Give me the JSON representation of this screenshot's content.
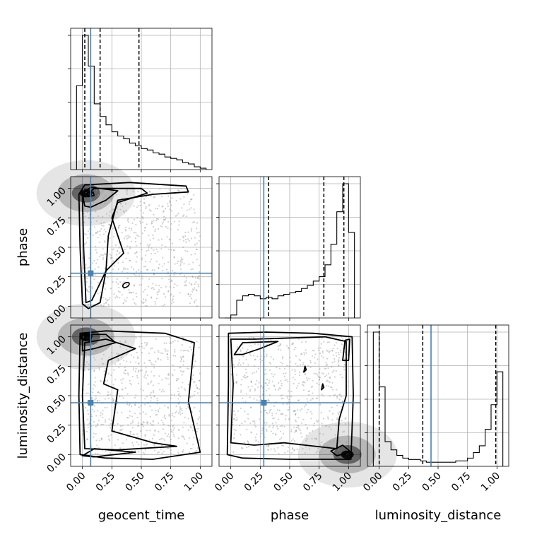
{
  "chart_data": {
    "type": "corner",
    "parameters": [
      {
        "key": "geocent_time",
        "label": "geocent_time"
      },
      {
        "key": "phase",
        "label": "phase"
      },
      {
        "key": "luminosity_distance",
        "label": "luminosity_distance"
      }
    ],
    "axis_range": [
      -0.1,
      1.1
    ],
    "tick_values": [
      0.0,
      0.25,
      0.5,
      0.75,
      1.0
    ],
    "tick_labels": [
      "0.00",
      "0.25",
      "0.50",
      "0.75",
      "1.00"
    ],
    "grid": true,
    "truth_color": "#4682b4",
    "truths": {
      "geocent_time": 0.07,
      "phase": 0.28,
      "luminosity_distance": 0.44
    },
    "quantiles": {
      "geocent_time": [
        0.02,
        0.15,
        0.48
      ],
      "phase": [
        0.32,
        0.79,
        0.96
      ],
      "luminosity_distance": [
        0.0,
        0.37,
        0.99
      ]
    },
    "histograms": {
      "geocent_time": {
        "bin_edges": [
          -0.05,
          0.0,
          0.05,
          0.1,
          0.15,
          0.2,
          0.25,
          0.3,
          0.35,
          0.4,
          0.45,
          0.5,
          0.55,
          0.6,
          0.65,
          0.7,
          0.75,
          0.8,
          0.85,
          0.9,
          0.95,
          1.0,
          1.05
        ],
        "counts": [
          0.6,
          0.96,
          0.74,
          0.47,
          0.38,
          0.32,
          0.27,
          0.24,
          0.22,
          0.19,
          0.17,
          0.15,
          0.14,
          0.12,
          0.11,
          0.09,
          0.08,
          0.07,
          0.05,
          0.04,
          0.02,
          0.01
        ]
      },
      "phase": {
        "bin_edges": [
          -0.05,
          0.0,
          0.05,
          0.1,
          0.15,
          0.2,
          0.25,
          0.3,
          0.35,
          0.4,
          0.45,
          0.5,
          0.55,
          0.6,
          0.65,
          0.7,
          0.75,
          0.8,
          0.85,
          0.9,
          0.95,
          1.0,
          1.05
        ],
        "counts": [
          0.0,
          0.02,
          0.12,
          0.15,
          0.16,
          0.15,
          0.13,
          0.14,
          0.13,
          0.15,
          0.16,
          0.17,
          0.18,
          0.2,
          0.22,
          0.25,
          0.28,
          0.36,
          0.5,
          0.72,
          0.91,
          0.58
        ]
      },
      "luminosity_distance": {
        "bin_edges": [
          -0.05,
          0.0,
          0.05,
          0.1,
          0.15,
          0.2,
          0.25,
          0.3,
          0.35,
          0.4,
          0.45,
          0.5,
          0.55,
          0.6,
          0.65,
          0.7,
          0.75,
          0.8,
          0.85,
          0.9,
          0.95,
          1.0,
          1.05
        ],
        "counts": [
          0.98,
          0.58,
          0.18,
          0.12,
          0.08,
          0.06,
          0.05,
          0.05,
          0.04,
          0.03,
          0.03,
          0.03,
          0.03,
          0.03,
          0.04,
          0.04,
          0.06,
          0.1,
          0.15,
          0.27,
          0.45,
          0.69
        ]
      }
    },
    "contour_panels": [
      {
        "x": "geocent_time",
        "y": "phase",
        "density_peak": {
          "x": 0.03,
          "y": 0.96
        },
        "isolated_contour": {
          "x": 0.37,
          "y": 0.18
        },
        "contours": [
          [
            [
              0.0,
              0.02
            ],
            [
              -0.02,
              0.5
            ],
            [
              -0.03,
              0.95
            ],
            [
              0.02,
              1.03
            ],
            [
              0.4,
              1.05
            ],
            [
              0.88,
              1.02
            ],
            [
              0.9,
              0.97
            ],
            [
              0.6,
              0.95
            ],
            [
              0.3,
              0.9
            ],
            [
              0.22,
              0.6
            ],
            [
              0.2,
              0.3
            ],
            [
              0.15,
              0.03
            ],
            [
              0.05,
              -0.02
            ]
          ],
          [
            [
              0.03,
              0.03
            ],
            [
              0.01,
              0.5
            ],
            [
              0.0,
              0.92
            ],
            [
              0.1,
              1.0
            ],
            [
              0.5,
              1.0
            ],
            [
              0.55,
              0.96
            ],
            [
              0.3,
              0.88
            ],
            [
              0.25,
              0.75
            ],
            [
              0.35,
              0.45
            ],
            [
              0.2,
              0.3
            ],
            [
              0.08,
              0.05
            ]
          ],
          [
            [
              0.02,
              0.85
            ],
            [
              0.0,
              0.95
            ],
            [
              0.07,
              1.01
            ],
            [
              0.3,
              0.98
            ],
            [
              0.2,
              0.9
            ],
            [
              0.07,
              0.84
            ]
          ],
          [
            [
              0.05,
              0.93
            ],
            [
              0.04,
              0.96
            ],
            [
              0.09,
              0.97
            ],
            [
              0.1,
              0.94
            ]
          ]
        ]
      },
      {
        "x": "geocent_time",
        "y": "luminosity_distance",
        "density_peak": {
          "x": 0.03,
          "y": 1.0
        },
        "contours": [
          [
            [
              -0.02,
              0.0
            ],
            [
              -0.03,
              0.5
            ],
            [
              -0.02,
              1.03
            ],
            [
              0.2,
              1.05
            ],
            [
              0.7,
              1.03
            ],
            [
              0.95,
              0.95
            ],
            [
              0.9,
              0.45
            ],
            [
              1.0,
              0.02
            ],
            [
              0.6,
              -0.04
            ],
            [
              0.2,
              -0.03
            ]
          ],
          [
            [
              0.02,
              0.05
            ],
            [
              0.0,
              0.5
            ],
            [
              0.02,
              0.95
            ],
            [
              0.2,
              0.98
            ],
            [
              0.45,
              0.9
            ],
            [
              0.22,
              0.8
            ],
            [
              0.18,
              0.6
            ],
            [
              0.3,
              0.55
            ],
            [
              0.25,
              0.2
            ],
            [
              0.6,
              0.1
            ],
            [
              0.8,
              0.07
            ],
            [
              0.3,
              0.04
            ]
          ],
          [
            [
              0.0,
              0.88
            ],
            [
              0.0,
              1.02
            ],
            [
              0.2,
              1.02
            ],
            [
              0.28,
              0.95
            ],
            [
              0.1,
              0.9
            ]
          ],
          [
            [
              0.02,
              0.97
            ],
            [
              0.03,
              1.01
            ],
            [
              0.08,
              1.01
            ],
            [
              0.07,
              0.97
            ]
          ],
          [
            [
              0.0,
              -0.01
            ],
            [
              0.1,
              0.05
            ],
            [
              0.45,
              0.02
            ],
            [
              0.1,
              -0.02
            ]
          ]
        ]
      },
      {
        "x": "phase",
        "y": "luminosity_distance",
        "density_peak": {
          "x": 0.99,
          "y": 0.0
        },
        "contours": [
          [
            [
              -0.03,
              0.0
            ],
            [
              -0.02,
              0.6
            ],
            [
              -0.02,
              1.03
            ],
            [
              0.3,
              1.04
            ],
            [
              0.7,
              1.03
            ],
            [
              1.03,
              1.0
            ],
            [
              1.04,
              0.5
            ],
            [
              1.02,
              -0.04
            ],
            [
              0.5,
              -0.04
            ],
            [
              0.1,
              -0.03
            ]
          ],
          [
            [
              0.0,
              0.1
            ],
            [
              0.02,
              0.6
            ],
            [
              0.0,
              0.98
            ],
            [
              0.2,
              0.98
            ],
            [
              0.8,
              1.0
            ],
            [
              0.98,
              0.96
            ],
            [
              0.98,
              0.5
            ],
            [
              0.92,
              0.3
            ],
            [
              0.9,
              0.05
            ],
            [
              0.45,
              0.1
            ],
            [
              0.2,
              0.08
            ]
          ],
          [
            [
              0.03,
              0.85
            ],
            [
              0.1,
              0.95
            ],
            [
              0.4,
              0.96
            ],
            [
              0.25,
              0.9
            ],
            [
              0.1,
              0.85
            ]
          ],
          [
            [
              0.85,
              0.03
            ],
            [
              0.95,
              0.08
            ],
            [
              1.02,
              0.02
            ],
            [
              0.9,
              -0.01
            ]
          ],
          [
            [
              0.95,
              0.8
            ],
            [
              0.97,
              0.97
            ],
            [
              1.01,
              0.98
            ],
            [
              1.0,
              0.8
            ]
          ],
          [
            [
              0.63,
              0.75
            ],
            [
              0.62,
              0.7
            ],
            [
              0.64,
              0.72
            ]
          ],
          [
            [
              0.78,
              0.6
            ],
            [
              0.77,
              0.55
            ],
            [
              0.79,
              0.57
            ]
          ]
        ]
      }
    ]
  }
}
